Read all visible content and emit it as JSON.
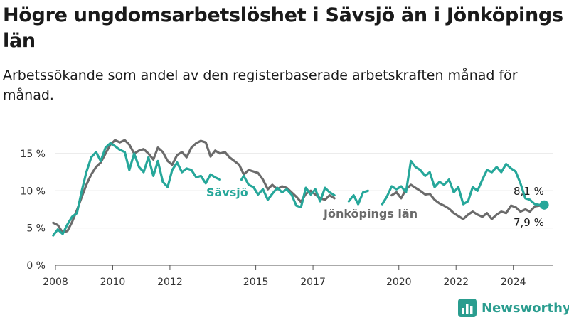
{
  "header": {
    "title": "Högre ungdomsarbetslöshet i Sävsjö än i Jönköpings län",
    "subtitle": "Arbetssökande som andel av den registerbaserade arbetskraften månad för månad."
  },
  "brand": {
    "name": "Newsworthy",
    "icon": "bar-chart-logo-icon"
  },
  "colors": {
    "savsjo": "#26a79a",
    "jonkoping": "#6b6b6b",
    "grid": "#d9d9d9",
    "axis": "#555555"
  },
  "chart_data": {
    "type": "line",
    "ylim": [
      0,
      17
    ],
    "yticks": [
      0,
      5,
      10,
      15
    ],
    "ytick_labels": [
      "0 %",
      "5 %",
      "10 %",
      "15 %"
    ],
    "xlim": [
      2008,
      2025.4
    ],
    "xtick_positions": [
      2008,
      2010,
      2012,
      2015,
      2017,
      2020,
      2022,
      2024
    ],
    "xtick_labels": [
      "2008",
      "2010",
      "2012",
      "2015",
      "2017",
      "2020",
      "2022",
      "2024"
    ],
    "grid": true,
    "series": [
      {
        "name": "Jönköpings län",
        "end_label": "7,9 %",
        "points": [
          [
            2007.92,
            5.7
          ],
          [
            2008.08,
            5.4
          ],
          [
            2008.25,
            4.4
          ],
          [
            2008.42,
            4.6
          ],
          [
            2008.58,
            5.8
          ],
          [
            2008.75,
            7.4
          ],
          [
            2008.92,
            9.2
          ],
          [
            2009.08,
            10.8
          ],
          [
            2009.25,
            12.2
          ],
          [
            2009.42,
            13.2
          ],
          [
            2009.58,
            13.8
          ],
          [
            2009.75,
            15.0
          ],
          [
            2009.92,
            16.2
          ],
          [
            2010.08,
            16.8
          ],
          [
            2010.25,
            16.5
          ],
          [
            2010.42,
            16.8
          ],
          [
            2010.58,
            16.2
          ],
          [
            2010.75,
            15.0
          ],
          [
            2010.92,
            15.4
          ],
          [
            2011.08,
            15.6
          ],
          [
            2011.25,
            15.0
          ],
          [
            2011.42,
            14.2
          ],
          [
            2011.58,
            15.8
          ],
          [
            2011.75,
            15.2
          ],
          [
            2011.92,
            14.0
          ],
          [
            2012.08,
            13.5
          ],
          [
            2012.25,
            14.8
          ],
          [
            2012.42,
            15.2
          ],
          [
            2012.58,
            14.5
          ],
          [
            2012.75,
            15.8
          ],
          [
            2012.92,
            16.4
          ],
          [
            2013.08,
            16.7
          ],
          [
            2013.25,
            16.5
          ],
          [
            2013.42,
            14.6
          ],
          [
            2013.58,
            15.4
          ],
          [
            2013.75,
            15.0
          ],
          [
            2013.92,
            15.2
          ],
          [
            2014.08,
            14.5
          ],
          [
            2014.25,
            14.0
          ],
          [
            2014.42,
            13.5
          ],
          [
            2014.58,
            12.2
          ],
          [
            2014.75,
            12.8
          ],
          [
            2014.92,
            12.6
          ],
          [
            2015.08,
            12.4
          ],
          [
            2015.25,
            11.5
          ],
          [
            2015.42,
            10.2
          ],
          [
            2015.58,
            10.8
          ],
          [
            2015.75,
            10.2
          ],
          [
            2015.92,
            10.6
          ],
          [
            2016.08,
            10.4
          ],
          [
            2016.25,
            9.8
          ],
          [
            2016.42,
            9.2
          ],
          [
            2016.58,
            8.5
          ],
          [
            2016.75,
            9.6
          ],
          [
            2016.92,
            10.0
          ],
          [
            2017.08,
            9.5
          ],
          [
            2017.25,
            9.0
          ],
          [
            2017.42,
            8.8
          ],
          [
            2017.58,
            9.4
          ],
          [
            2017.75,
            9.0
          ],
          [
            2019.5,
            9.0
          ],
          [
            2019.75,
            9.4
          ],
          [
            2019.92,
            9.8
          ],
          [
            2020.08,
            9.0
          ],
          [
            2020.25,
            10.2
          ],
          [
            2020.42,
            10.8
          ],
          [
            2020.58,
            10.4
          ],
          [
            2020.75,
            10.0
          ],
          [
            2020.92,
            9.5
          ],
          [
            2021.08,
            9.6
          ],
          [
            2021.25,
            8.8
          ],
          [
            2021.42,
            8.3
          ],
          [
            2021.58,
            8.0
          ],
          [
            2021.75,
            7.6
          ],
          [
            2021.92,
            7.0
          ],
          [
            2022.08,
            6.6
          ],
          [
            2022.25,
            6.2
          ],
          [
            2022.42,
            6.8
          ],
          [
            2022.58,
            7.2
          ],
          [
            2022.75,
            6.8
          ],
          [
            2022.92,
            6.5
          ],
          [
            2023.08,
            7.0
          ],
          [
            2023.25,
            6.2
          ],
          [
            2023.42,
            6.8
          ],
          [
            2023.58,
            7.2
          ],
          [
            2023.75,
            7.0
          ],
          [
            2023.92,
            8.0
          ],
          [
            2024.08,
            7.8
          ],
          [
            2024.25,
            7.2
          ],
          [
            2024.42,
            7.5
          ],
          [
            2024.58,
            7.2
          ],
          [
            2024.75,
            7.9
          ],
          [
            2024.92,
            8.0
          ],
          [
            2025.08,
            7.9
          ]
        ]
      },
      {
        "name": "Sävsjö",
        "end_label": "8,1 %",
        "points": [
          [
            2007.92,
            4.0
          ],
          [
            2008.08,
            4.8
          ],
          [
            2008.25,
            4.2
          ],
          [
            2008.42,
            5.5
          ],
          [
            2008.58,
            6.5
          ],
          [
            2008.75,
            7.0
          ],
          [
            2008.92,
            10.0
          ],
          [
            2009.08,
            12.5
          ],
          [
            2009.25,
            14.5
          ],
          [
            2009.42,
            15.2
          ],
          [
            2009.58,
            14.0
          ],
          [
            2009.75,
            15.8
          ],
          [
            2009.92,
            16.4
          ],
          [
            2010.08,
            16.0
          ],
          [
            2010.25,
            15.5
          ],
          [
            2010.42,
            15.2
          ],
          [
            2010.58,
            12.8
          ],
          [
            2010.75,
            15.0
          ],
          [
            2010.92,
            13.2
          ],
          [
            2011.08,
            12.5
          ],
          [
            2011.25,
            14.5
          ],
          [
            2011.42,
            12.0
          ],
          [
            2011.58,
            14.0
          ],
          [
            2011.75,
            11.2
          ],
          [
            2011.92,
            10.5
          ],
          [
            2012.08,
            12.8
          ],
          [
            2012.25,
            13.8
          ],
          [
            2012.42,
            12.5
          ],
          [
            2012.58,
            13.0
          ],
          [
            2012.75,
            12.8
          ],
          [
            2012.92,
            11.8
          ],
          [
            2013.08,
            12.0
          ],
          [
            2013.25,
            11.0
          ],
          [
            2013.42,
            12.2
          ],
          [
            2013.58,
            11.8
          ],
          [
            2013.75,
            11.5
          ],
          [
            2014.5,
            11.5
          ],
          [
            2014.58,
            12.0
          ],
          [
            2014.75,
            10.8
          ],
          [
            2014.92,
            10.5
          ],
          [
            2015.08,
            9.5
          ],
          [
            2015.25,
            10.2
          ],
          [
            2015.42,
            8.8
          ],
          [
            2015.58,
            9.6
          ],
          [
            2015.75,
            10.4
          ],
          [
            2015.92,
            9.8
          ],
          [
            2016.08,
            10.2
          ],
          [
            2016.25,
            9.5
          ],
          [
            2016.42,
            8.0
          ],
          [
            2016.58,
            7.8
          ],
          [
            2016.75,
            10.4
          ],
          [
            2016.92,
            9.5
          ],
          [
            2017.08,
            10.2
          ],
          [
            2017.25,
            8.6
          ],
          [
            2017.42,
            10.4
          ],
          [
            2017.58,
            9.8
          ],
          [
            2017.75,
            9.4
          ],
          [
            2018.25,
            8.6
          ],
          [
            2018.42,
            9.4
          ],
          [
            2018.58,
            8.2
          ],
          [
            2018.75,
            9.8
          ],
          [
            2018.92,
            10.0
          ],
          [
            2019.42,
            8.2
          ],
          [
            2019.58,
            9.2
          ],
          [
            2019.75,
            10.6
          ],
          [
            2019.92,
            10.2
          ],
          [
            2020.08,
            10.6
          ],
          [
            2020.25,
            9.8
          ],
          [
            2020.42,
            14.0
          ],
          [
            2020.58,
            13.2
          ],
          [
            2020.75,
            12.8
          ],
          [
            2020.92,
            12.0
          ],
          [
            2021.08,
            12.5
          ],
          [
            2021.25,
            10.5
          ],
          [
            2021.42,
            11.2
          ],
          [
            2021.58,
            10.8
          ],
          [
            2021.75,
            11.5
          ],
          [
            2021.92,
            9.8
          ],
          [
            2022.08,
            10.5
          ],
          [
            2022.25,
            8.2
          ],
          [
            2022.42,
            8.6
          ],
          [
            2022.58,
            10.5
          ],
          [
            2022.75,
            10.0
          ],
          [
            2022.92,
            11.5
          ],
          [
            2023.08,
            12.8
          ],
          [
            2023.25,
            12.5
          ],
          [
            2023.42,
            13.2
          ],
          [
            2023.58,
            12.5
          ],
          [
            2023.75,
            13.6
          ],
          [
            2023.92,
            13.0
          ],
          [
            2024.08,
            12.6
          ],
          [
            2024.25,
            11.0
          ],
          [
            2024.42,
            9.0
          ],
          [
            2024.58,
            8.8
          ],
          [
            2024.75,
            8.2
          ],
          [
            2024.92,
            8.1
          ],
          [
            2025.08,
            8.1
          ]
        ]
      }
    ],
    "labels": {
      "savsjo": "Sävsjö",
      "jonkoping": "Jönköpings län"
    }
  }
}
